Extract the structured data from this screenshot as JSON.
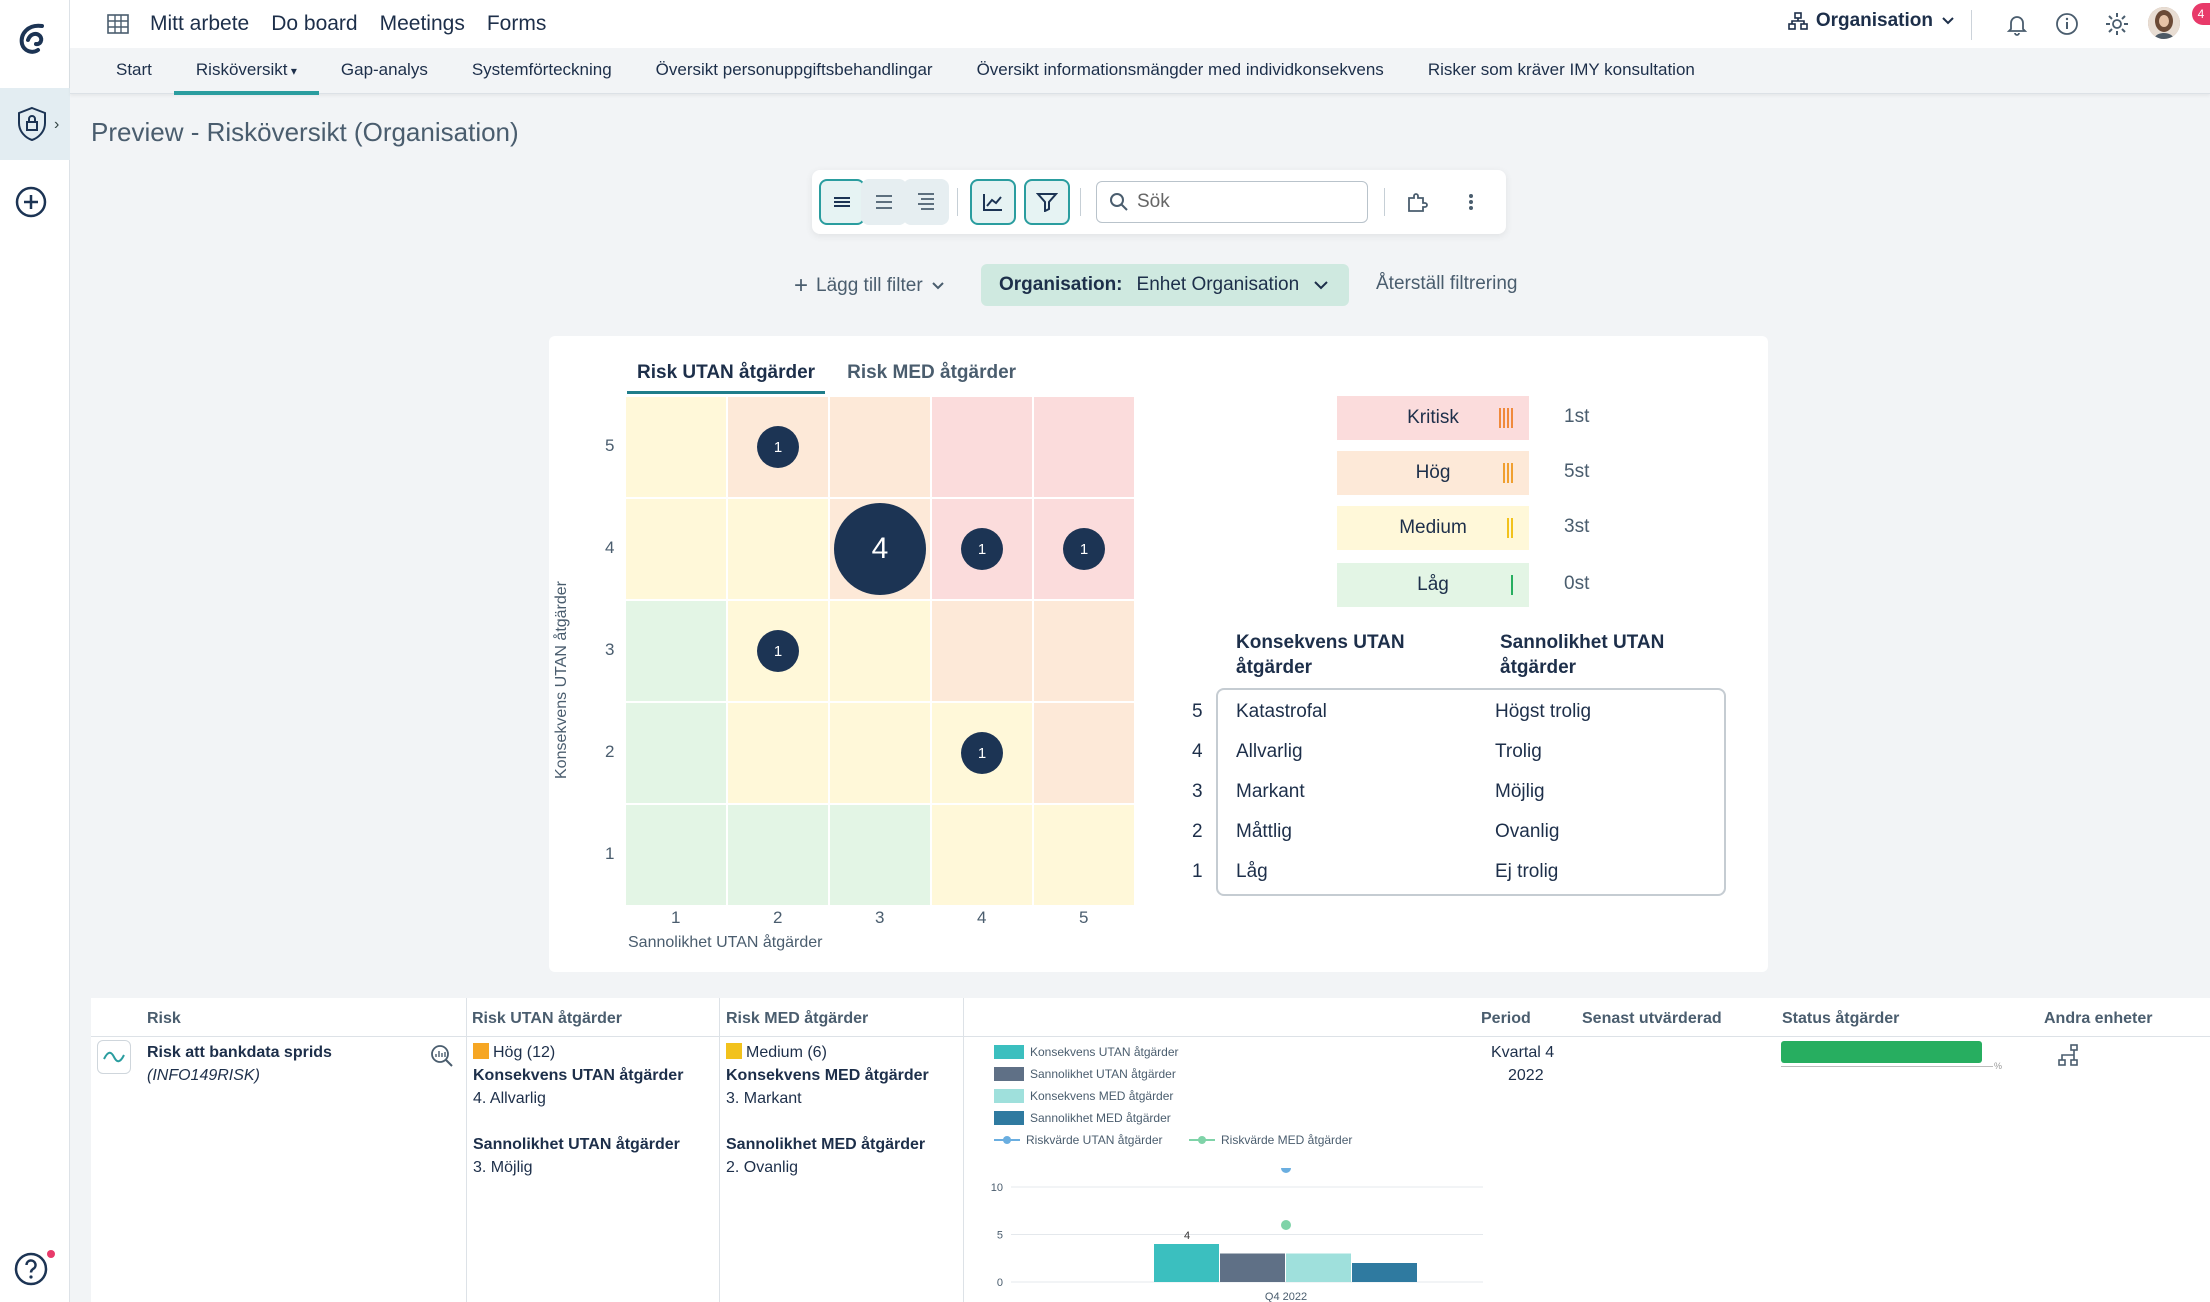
{
  "topbar": {
    "nav": [
      "Mitt arbete",
      "Do board",
      "Meetings",
      "Forms"
    ],
    "org_selector": "Organisation",
    "badge_count": "4"
  },
  "subnav": {
    "tabs": [
      "Start",
      "Risköversikt",
      "Gap-analys",
      "Systemförteckning",
      "Översikt personuppgiftsbehandlingar",
      "Översikt informationsmängder med individkonsekvens",
      "Risker som kräver IMY konsultation"
    ],
    "active": "Risköversikt"
  },
  "page": {
    "title": "Preview - Risköversikt (Organisation)"
  },
  "toolbar": {
    "search_placeholder": "Sök"
  },
  "filters": {
    "add_label": "Lägg till filter",
    "chip_key": "Organisation:",
    "chip_value": "Enhet Organisation",
    "reset_label": "Återställ filtrering"
  },
  "matrix": {
    "tabs": [
      "Risk UTAN åtgärder",
      "Risk MED åtgärder"
    ],
    "active_tab": "Risk UTAN åtgärder",
    "ylabel": "Konsekvens UTAN åtgärder",
    "xlabel": "Sannolikhet UTAN åtgärder",
    "ticks": [
      "1",
      "2",
      "3",
      "4",
      "5"
    ],
    "bubbles": [
      {
        "likelihood": 2,
        "consequence": 5,
        "count": "1"
      },
      {
        "likelihood": 3,
        "consequence": 4,
        "count": "4"
      },
      {
        "likelihood": 4,
        "consequence": 4,
        "count": "1"
      },
      {
        "likelihood": 5,
        "consequence": 4,
        "count": "1"
      },
      {
        "likelihood": 2,
        "consequence": 3,
        "count": "1"
      },
      {
        "likelihood": 4,
        "consequence": 2,
        "count": "1"
      }
    ]
  },
  "legend": {
    "levels": [
      {
        "label": "Kritisk",
        "count": "1st",
        "color": "#fbdcdc",
        "bar": "#f08a3c"
      },
      {
        "label": "Hög",
        "count": "5st",
        "color": "#fde9d8",
        "bar": "#f0a030"
      },
      {
        "label": "Medium",
        "count": "3st",
        "color": "#fff8d9",
        "bar": "#f2c21c"
      },
      {
        "label": "Låg",
        "count": "0st",
        "color": "#e3f5e5",
        "bar": "#27ae60"
      }
    ]
  },
  "scale": {
    "head_consequence_1": "Konsekvens UTAN",
    "head_consequence_2": "åtgärder",
    "head_likelihood_1": "Sannolikhet UTAN",
    "head_likelihood_2": "åtgärder",
    "rows": [
      {
        "n": "5",
        "consequence": "Katastrofal",
        "likelihood": "Högst trolig"
      },
      {
        "n": "4",
        "consequence": "Allvarlig",
        "likelihood": "Trolig"
      },
      {
        "n": "3",
        "consequence": "Markant",
        "likelihood": "Möjlig"
      },
      {
        "n": "2",
        "consequence": "Måttlig",
        "likelihood": "Ovanlig"
      },
      {
        "n": "1",
        "consequence": "Låg",
        "likelihood": "Ej trolig"
      }
    ]
  },
  "table": {
    "headers": {
      "risk": "Risk",
      "utan": "Risk UTAN åtgärder",
      "med": "Risk MED åtgärder",
      "period": "Period",
      "senast": "Senast utvärderad",
      "status": "Status åtgärder",
      "andra": "Andra enheter"
    },
    "row": {
      "name": "Risk att bankdata sprids",
      "id": "(INFO149RISK)",
      "utan_level": "Hög (12)",
      "utan_k_label": "Konsekvens UTAN åtgärder",
      "utan_k_value": "4. Allvarlig",
      "utan_s_label": "Sannolikhet UTAN åtgärder",
      "utan_s_value": "3. Möjlig",
      "med_level": "Medium (6)",
      "med_k_label": "Konsekvens MED åtgärder",
      "med_k_value": "3. Markant",
      "med_s_label": "Sannolikhet MED åtgärder",
      "med_s_value": "2. Ovanlig",
      "period_1": "Kvartal 4",
      "period_2": "2022",
      "status_progress": 0.95,
      "pct_symbol": "%"
    }
  },
  "chart_data": {
    "type": "bar",
    "categories": [
      "Q4 2022"
    ],
    "x_tick_label": "Q4 2022",
    "series": [
      {
        "name": "Konsekvens UTAN åtgärder",
        "values": [
          4
        ],
        "color": "#3bbfbf"
      },
      {
        "name": "Sannolikhet UTAN åtgärder",
        "values": [
          3
        ],
        "color": "#5f7086"
      },
      {
        "name": "Konsekvens MED åtgärder",
        "values": [
          3
        ],
        "color": "#9fe0dc"
      },
      {
        "name": "Sannolikhet MED åtgärder",
        "values": [
          2
        ],
        "color": "#2f7aa0"
      }
    ],
    "line_series": [
      {
        "name": "Riskvärde UTAN åtgärder",
        "values": [
          12
        ],
        "color": "#6aaee0"
      },
      {
        "name": "Riskvärde MED åtgärder",
        "values": [
          6
        ],
        "color": "#7fd3a8"
      }
    ],
    "data_labels": [
      "4"
    ],
    "yticks": [
      "10",
      "5",
      "0"
    ],
    "ylim": [
      0,
      12
    ]
  }
}
